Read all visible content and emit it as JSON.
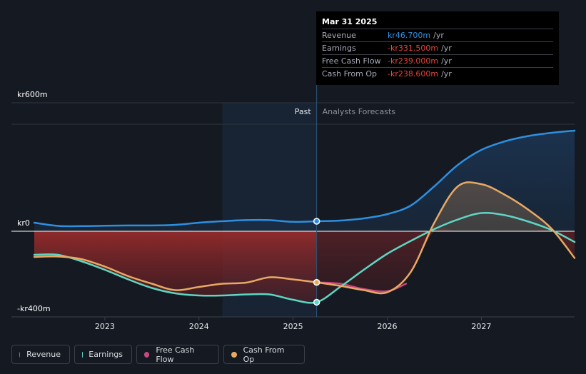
{
  "tooltip": {
    "date": "Mar 31 2025",
    "rows": [
      {
        "name": "Revenue",
        "value": "kr46.700m",
        "unit": "/yr",
        "color": "#2e8fe0"
      },
      {
        "name": "Earnings",
        "value": "-kr331.500m",
        "unit": "/yr",
        "color": "#e8453c"
      },
      {
        "name": "Free Cash Flow",
        "value": "-kr239.000m",
        "unit": "/yr",
        "color": "#e8453c"
      },
      {
        "name": "Cash From Op",
        "value": "-kr238.600m",
        "unit": "/yr",
        "color": "#e8453c"
      }
    ]
  },
  "legend": [
    {
      "label": "Revenue",
      "color": "#2e8fe0"
    },
    {
      "label": "Earnings",
      "color": "#5ed6c3"
    },
    {
      "label": "Free Cash Flow",
      "color": "#c9477f"
    },
    {
      "label": "Cash From Op",
      "color": "#e8a964"
    }
  ],
  "chart_data": {
    "type": "line",
    "y_axis_labels": [
      "kr600m",
      "kr0",
      "-kr400m"
    ],
    "ylim": [
      -400,
      600
    ],
    "xlim": [
      2022.25,
      2027.99
    ],
    "x_ticks": [
      {
        "value": 2023,
        "label": "2023"
      },
      {
        "value": 2024,
        "label": "2024"
      },
      {
        "value": 2025,
        "label": "2025"
      },
      {
        "value": 2026,
        "label": "2026"
      },
      {
        "value": 2027,
        "label": "2027"
      }
    ],
    "past_label": "Past",
    "forecast_label": "Analysts Forecasts",
    "highlight_start": 2024.25,
    "divider_x": 2025.25,
    "series": [
      {
        "name": "Revenue",
        "color": "#2e8fe0",
        "points": [
          [
            2022.25,
            40
          ],
          [
            2022.5,
            25
          ],
          [
            2022.75,
            24
          ],
          [
            2023,
            26
          ],
          [
            2023.25,
            27
          ],
          [
            2023.5,
            27
          ],
          [
            2023.75,
            30
          ],
          [
            2024,
            40
          ],
          [
            2024.25,
            47
          ],
          [
            2024.5,
            52
          ],
          [
            2024.75,
            52
          ],
          [
            2025,
            44
          ],
          [
            2025.25,
            46.7
          ],
          [
            2025.5,
            50
          ],
          [
            2025.75,
            60
          ],
          [
            2026,
            80
          ],
          [
            2026.25,
            120
          ],
          [
            2026.5,
            210
          ],
          [
            2026.75,
            310
          ],
          [
            2027,
            380
          ],
          [
            2027.25,
            420
          ],
          [
            2027.5,
            445
          ],
          [
            2027.75,
            460
          ],
          [
            2027.99,
            470
          ]
        ],
        "marker": [
          2025.25,
          46.7
        ]
      },
      {
        "name": "Earnings",
        "color": "#5ed6c3",
        "points": [
          [
            2022.25,
            -110
          ],
          [
            2022.5,
            -110
          ],
          [
            2022.75,
            -140
          ],
          [
            2023,
            -180
          ],
          [
            2023.25,
            -225
          ],
          [
            2023.5,
            -265
          ],
          [
            2023.75,
            -290
          ],
          [
            2024,
            -300
          ],
          [
            2024.25,
            -300
          ],
          [
            2024.5,
            -295
          ],
          [
            2024.75,
            -295
          ],
          [
            2025,
            -320
          ],
          [
            2025.25,
            -331.5
          ],
          [
            2025.5,
            -260
          ],
          [
            2025.75,
            -180
          ],
          [
            2026,
            -105
          ],
          [
            2026.25,
            -45
          ],
          [
            2026.5,
            10
          ],
          [
            2026.75,
            55
          ],
          [
            2027,
            85
          ],
          [
            2027.25,
            75
          ],
          [
            2027.5,
            45
          ],
          [
            2027.75,
            5
          ],
          [
            2027.99,
            -50
          ]
        ],
        "marker": [
          2025.25,
          -331.5
        ]
      },
      {
        "name": "Free Cash Flow",
        "color": "#c9477f",
        "points": [
          [
            2025.25,
            -239
          ],
          [
            2025.5,
            -245
          ],
          [
            2025.75,
            -270
          ],
          [
            2026,
            -280
          ],
          [
            2026.2,
            -245
          ]
        ]
      },
      {
        "name": "Cash From Op",
        "color": "#e8a964",
        "points": [
          [
            2022.25,
            -120
          ],
          [
            2022.5,
            -118
          ],
          [
            2022.75,
            -130
          ],
          [
            2023,
            -165
          ],
          [
            2023.25,
            -210
          ],
          [
            2023.5,
            -245
          ],
          [
            2023.75,
            -275
          ],
          [
            2024,
            -260
          ],
          [
            2024.25,
            -245
          ],
          [
            2024.5,
            -240
          ],
          [
            2024.75,
            -215
          ],
          [
            2025,
            -225
          ],
          [
            2025.25,
            -238.6
          ],
          [
            2025.5,
            -255
          ],
          [
            2025.75,
            -275
          ],
          [
            2026,
            -285
          ],
          [
            2026.25,
            -190
          ],
          [
            2026.5,
            40
          ],
          [
            2026.75,
            210
          ],
          [
            2027,
            220
          ],
          [
            2027.25,
            170
          ],
          [
            2027.5,
            100
          ],
          [
            2027.75,
            10
          ],
          [
            2027.99,
            -125
          ]
        ],
        "marker": [
          2025.25,
          -238.6
        ]
      }
    ]
  }
}
